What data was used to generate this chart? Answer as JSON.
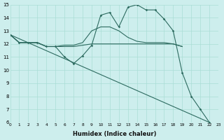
{
  "bg_color": "#cdeeed",
  "line_color": "#2d6b60",
  "grid_color": "#aaddd6",
  "xlabel": "Humidex (Indice chaleur)",
  "xlim": [
    0,
    23
  ],
  "ylim": [
    6,
    15
  ],
  "yticks": [
    6,
    7,
    8,
    9,
    10,
    11,
    12,
    13,
    14,
    15
  ],
  "xticks": [
    0,
    1,
    2,
    3,
    4,
    5,
    6,
    7,
    8,
    9,
    10,
    11,
    12,
    13,
    14,
    15,
    16,
    17,
    18,
    19,
    20,
    21,
    22,
    23
  ],
  "curve1_x": [
    0,
    1,
    2,
    3,
    4,
    5,
    6,
    7,
    8,
    9,
    10,
    11,
    12,
    13,
    14,
    15,
    16,
    17,
    18,
    19,
    20,
    21,
    22
  ],
  "curve1_y": [
    12.7,
    12.1,
    12.1,
    12.1,
    11.8,
    11.8,
    11.0,
    10.5,
    11.1,
    11.9,
    14.2,
    14.4,
    13.3,
    14.8,
    15.0,
    14.6,
    14.6,
    13.9,
    13.0,
    9.8,
    8.0,
    7.0,
    6.0
  ],
  "curve2_x": [
    0,
    1,
    2,
    3,
    4,
    5,
    6,
    7,
    8,
    9,
    10,
    11,
    12,
    13,
    14,
    15,
    16,
    17,
    18,
    19
  ],
  "curve2_y": [
    12.7,
    12.1,
    12.1,
    12.1,
    11.8,
    11.8,
    11.8,
    11.8,
    11.9,
    12.0,
    12.0,
    12.0,
    12.0,
    12.0,
    12.0,
    12.0,
    12.0,
    12.0,
    12.0,
    11.8
  ],
  "curve3_x": [
    0,
    1,
    2,
    3,
    4,
    5,
    6,
    7,
    8,
    9,
    10,
    11,
    12,
    13,
    14,
    15,
    16,
    17,
    18,
    19
  ],
  "curve3_y": [
    12.7,
    12.1,
    12.1,
    12.1,
    11.8,
    11.8,
    11.9,
    11.9,
    12.1,
    13.0,
    13.3,
    13.3,
    13.0,
    12.5,
    12.2,
    12.1,
    12.1,
    12.1,
    12.0,
    11.8
  ],
  "curve4_x": [
    0,
    22
  ],
  "curve4_y": [
    12.7,
    6.0
  ]
}
